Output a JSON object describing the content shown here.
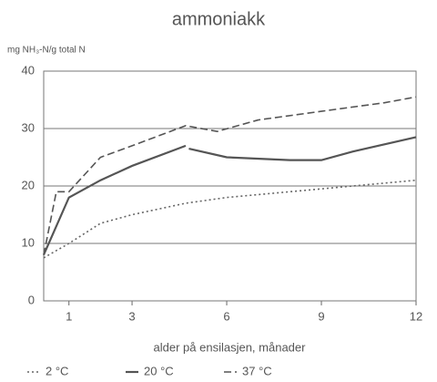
{
  "chart_data": {
    "type": "line",
    "title": "ammoniakk",
    "y_label": "mg NH₃-N/g total N",
    "x_label": "alder på ensilasjen, månader",
    "xlim": [
      0.2,
      12
    ],
    "xticks": [
      1,
      3,
      6,
      9,
      12
    ],
    "ylim": [
      0,
      40
    ],
    "yticks": [
      0,
      10,
      20,
      30,
      40
    ],
    "grid": true,
    "series": [
      {
        "name": "2 °C",
        "color": "#666666",
        "dash": "dotted",
        "x": [
          0.2,
          1,
          2,
          3,
          4.7,
          6,
          8,
          10,
          12
        ],
        "values": [
          7.5,
          10,
          13.5,
          15,
          17,
          18,
          19,
          20,
          21
        ]
      },
      {
        "name": "20 °C",
        "color": "#555555",
        "dash": "solid",
        "x": [
          0.2,
          1,
          2,
          3,
          4.7,
          4.7,
          4.8,
          6,
          8,
          9,
          10,
          12
        ],
        "values": [
          8,
          18,
          21,
          23.5,
          27,
          null,
          26.5,
          25,
          24.5,
          24.5,
          26,
          28.5
        ]
      },
      {
        "name": "37 °C",
        "color": "#555555",
        "dash": "dashed",
        "x": [
          0.2,
          0.6,
          1,
          2,
          3,
          4.7,
          5.7,
          7,
          9,
          11,
          12
        ],
        "values": [
          8,
          19,
          19,
          25,
          27,
          30.5,
          29.5,
          31.5,
          33,
          34.5,
          35.5
        ]
      }
    ]
  }
}
